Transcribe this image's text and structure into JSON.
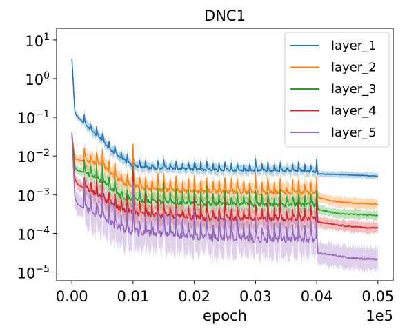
{
  "chart_data": {
    "type": "line",
    "title": "DNC1",
    "xlabel": "epoch",
    "ylabel": "",
    "x_offset_text": "1e5",
    "xlim": [
      -0.0025,
      0.0525
    ],
    "ylim": [
      6e-06,
      20
    ],
    "yscale": "log",
    "x_ticks": [
      {
        "value": 0.0,
        "label": "0.00"
      },
      {
        "value": 0.01,
        "label": "0.01"
      },
      {
        "value": 0.02,
        "label": "0.02"
      },
      {
        "value": 0.03,
        "label": "0.03"
      },
      {
        "value": 0.04,
        "label": "0.04"
      },
      {
        "value": 0.05,
        "label": "0.05"
      }
    ],
    "y_ticks": [
      {
        "value": 10,
        "base": "10",
        "exp": "1"
      },
      {
        "value": 1,
        "base": "10",
        "exp": "0"
      },
      {
        "value": 0.1,
        "base": "10",
        "exp": "−1"
      },
      {
        "value": 0.01,
        "base": "10",
        "exp": "−2"
      },
      {
        "value": 0.001,
        "base": "10",
        "exp": "−3"
      },
      {
        "value": 0.0001,
        "base": "10",
        "exp": "−4"
      },
      {
        "value": 1e-05,
        "base": "10",
        "exp": "−5"
      }
    ],
    "grid": false,
    "legend_position": "upper-right",
    "series": [
      {
        "name": "layer_1",
        "color": "#1f77b4",
        "x": [
          0,
          0.0005,
          0.001,
          0.002,
          0.003,
          0.004,
          0.005,
          0.006,
          0.007,
          0.008,
          0.009,
          0.01,
          0.012,
          0.014,
          0.016,
          0.018,
          0.02,
          0.025,
          0.03,
          0.035,
          0.04,
          0.0401,
          0.042,
          0.044,
          0.046,
          0.048,
          0.05
        ],
        "y": [
          3.3,
          0.13,
          0.1,
          0.07,
          0.05,
          0.035,
          0.025,
          0.016,
          0.012,
          0.009,
          0.007,
          0.0055,
          0.005,
          0.0048,
          0.0047,
          0.0046,
          0.0045,
          0.0043,
          0.0042,
          0.0041,
          0.004,
          0.0034,
          0.0034,
          0.0033,
          0.0032,
          0.0031,
          0.003
        ],
        "spread": 0.13,
        "noise": 0.22
      },
      {
        "name": "layer_2",
        "color": "#ff7f0e",
        "x": [
          0,
          0.0005,
          0.001,
          0.002,
          0.003,
          0.004,
          0.005,
          0.006,
          0.007,
          0.008,
          0.009,
          0.01,
          0.015,
          0.02,
          0.025,
          0.03,
          0.035,
          0.04,
          0.0401,
          0.042,
          0.044,
          0.046,
          0.048,
          0.05
        ],
        "y": [
          0.035,
          0.0085,
          0.008,
          0.0075,
          0.007,
          0.0065,
          0.006,
          0.004,
          0.0028,
          0.0022,
          0.0018,
          0.0016,
          0.0013,
          0.0012,
          0.0012,
          0.0011,
          0.0011,
          0.0011,
          0.00085,
          0.00072,
          0.00064,
          0.0006,
          0.00058,
          0.00057
        ],
        "spread": 0.22,
        "noise": 0.38
      },
      {
        "name": "layer_3",
        "color": "#2ca02c",
        "x": [
          0,
          0.0005,
          0.001,
          0.002,
          0.003,
          0.004,
          0.005,
          0.006,
          0.007,
          0.008,
          0.009,
          0.01,
          0.015,
          0.02,
          0.025,
          0.03,
          0.035,
          0.04,
          0.0401,
          0.042,
          0.044,
          0.046,
          0.048,
          0.05
        ],
        "y": [
          0.035,
          0.005,
          0.0042,
          0.0038,
          0.0032,
          0.0026,
          0.0022,
          0.0016,
          0.0012,
          0.0009,
          0.0008,
          0.00072,
          0.00062,
          0.00058,
          0.00056,
          0.00055,
          0.00055,
          0.00055,
          0.00042,
          0.00036,
          0.00032,
          0.00031,
          0.0003,
          0.00029
        ],
        "spread": 0.2,
        "noise": 0.36
      },
      {
        "name": "layer_4",
        "color": "#d62728",
        "x": [
          0,
          0.0005,
          0.001,
          0.002,
          0.003,
          0.004,
          0.005,
          0.006,
          0.007,
          0.008,
          0.009,
          0.01,
          0.015,
          0.02,
          0.025,
          0.03,
          0.035,
          0.04,
          0.0401,
          0.042,
          0.044,
          0.046,
          0.048,
          0.05
        ],
        "y": [
          0.04,
          0.0025,
          0.0018,
          0.0015,
          0.0013,
          0.001,
          0.0008,
          0.00065,
          0.0005,
          0.00042,
          0.00038,
          0.00035,
          0.00028,
          0.00025,
          0.00024,
          0.00023,
          0.00023,
          0.00023,
          0.0002,
          0.00018,
          0.00016,
          0.00015,
          0.00014,
          0.00014
        ],
        "spread": 0.24,
        "noise": 0.45
      },
      {
        "name": "layer_5",
        "color": "#9467bd",
        "x": [
          0,
          0.0005,
          0.001,
          0.002,
          0.003,
          0.004,
          0.005,
          0.006,
          0.007,
          0.008,
          0.009,
          0.01,
          0.015,
          0.02,
          0.025,
          0.03,
          0.035,
          0.04,
          0.0401,
          0.042,
          0.044,
          0.046,
          0.048,
          0.05
        ],
        "y": [
          0.04,
          0.0008,
          0.00055,
          0.00045,
          0.00038,
          0.0003,
          0.00025,
          0.0002,
          0.00016,
          0.00013,
          0.00012,
          0.00011,
          9e-05,
          8e-05,
          7.5e-05,
          7e-05,
          7e-05,
          7e-05,
          3.2e-05,
          2.8e-05,
          2.5e-05,
          2.3e-05,
          2.2e-05,
          2.1e-05
        ],
        "spread": 0.5,
        "noise": 0.6
      }
    ]
  }
}
